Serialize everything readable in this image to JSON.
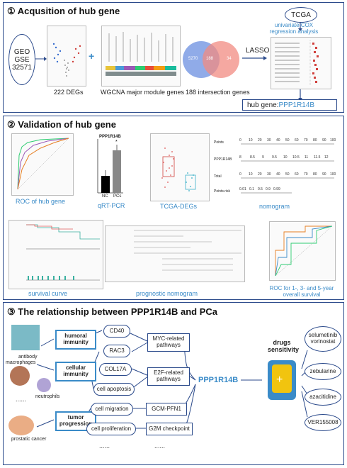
{
  "panel1": {
    "title": "① Acqusition of hub gene",
    "geo": "GEO\nGSE\n32571",
    "deg_count": "222 DEGs",
    "wgcna": "WGCNA major module genes",
    "intersection": "188 intersection genes",
    "lasso": "LASSO",
    "tcga": "TCGA",
    "cox": "univariate COX\nregression analysis",
    "hub_prefix": "hub gene: ",
    "hub_gene": "PPP1R14B",
    "venn_left": "5270",
    "venn_mid": "188",
    "venn_right": "34"
  },
  "panel2": {
    "title": "② Validation of hub gene",
    "roc": "ROC of hub gene",
    "qrt": "qRT-PCR",
    "tcga_degs": "TCGA-DEGs",
    "nomogram": "nomogram",
    "survival": "survival curve",
    "prog_nomo": "prognostic nomogram",
    "roc_surv": "ROC for 1-, 3- and 5-year\noverall survival",
    "bar_nc": "NC",
    "bar_pcs": "PCs",
    "nomo_rows": [
      "Points",
      "PPP1R14B",
      "Total",
      "Points.risk"
    ]
  },
  "panel3": {
    "title": "③ The relationship between PPP1R14B and PCa",
    "humoral": "humoral\nimmunity",
    "cellular": "cellular\nimmunity",
    "tumor": "tumor\nprogression",
    "antibody": "antibody",
    "macrophages": "macrophages",
    "neutrophils": "neutrophils",
    "prostatic": "prostatic cancer",
    "genes": [
      "CD40",
      "RAC3",
      "COL17A",
      "cell apoptosis",
      "cell migration",
      "cell proliferation"
    ],
    "pathways": [
      "MYC-related\npathways",
      "E2F-related\npathways",
      "GCM-PFN1",
      "G2M checkpoint"
    ],
    "center": "PPP1R14B",
    "drugs_sens": "drugs\nsensitivity",
    "drugs": [
      "selumetinib\nvorinostat",
      "zebularine",
      "azacitidine",
      "VER155008"
    ],
    "dots": "......"
  }
}
